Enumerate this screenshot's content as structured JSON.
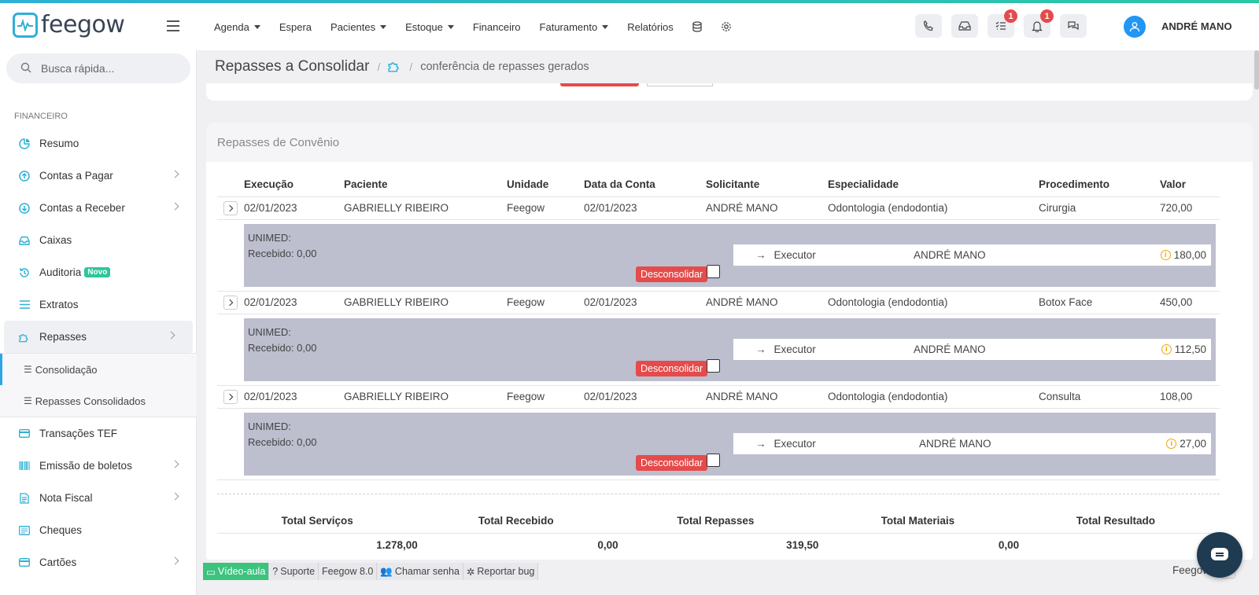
{
  "brand": {
    "name": "feegow",
    "color": "#2fb0d6"
  },
  "nav": {
    "items": [
      {
        "label": "Agenda",
        "dropdown": true
      },
      {
        "label": "Espera",
        "dropdown": false
      },
      {
        "label": "Pacientes",
        "dropdown": true
      },
      {
        "label": "Estoque",
        "dropdown": true
      },
      {
        "label": "Financeiro",
        "dropdown": false
      },
      {
        "label": "Faturamento",
        "dropdown": true
      },
      {
        "label": "Relatórios",
        "dropdown": false
      }
    ],
    "icons": [
      "database-icon",
      "gear-icon"
    ]
  },
  "header": {
    "icons": [
      {
        "name": "phone-icon",
        "badge": null
      },
      {
        "name": "inbox-icon",
        "badge": null
      },
      {
        "name": "tasks-icon",
        "badge": "1"
      },
      {
        "name": "bell-icon",
        "badge": "1"
      },
      {
        "name": "chat-icon",
        "badge": null
      }
    ],
    "user": "ANDRÉ MANO"
  },
  "sidebar": {
    "search_placeholder": "Busca rápida...",
    "section": "FINANCEIRO",
    "items": [
      {
        "label": "Resumo",
        "icon": "pie-chart-icon"
      },
      {
        "label": "Contas a Pagar",
        "icon": "arrow-up-circle-icon",
        "chevron": true
      },
      {
        "label": "Contas a Receber",
        "icon": "arrow-down-circle-icon",
        "chevron": true
      },
      {
        "label": "Caixas",
        "icon": "inbox-icon"
      },
      {
        "label": "Auditoria",
        "icon": "history-icon",
        "badge": "Novo"
      },
      {
        "label": "Extratos",
        "icon": "list-icon"
      },
      {
        "label": "Repasses",
        "icon": "puzzle-icon",
        "chevron": true,
        "active": true
      }
    ],
    "sub_items": [
      {
        "label": "Consolidação",
        "active": true
      },
      {
        "label": "Repasses Consolidados"
      }
    ],
    "items_after": [
      {
        "label": "Transações TEF",
        "icon": "card-icon"
      },
      {
        "label": "Emissão de boletos",
        "icon": "barcode-icon",
        "chevron": true
      },
      {
        "label": "Nota Fiscal",
        "icon": "document-icon",
        "chevron": true
      },
      {
        "label": "Cheques",
        "icon": "check-icon"
      },
      {
        "label": "Cartões",
        "icon": "card-icon",
        "chevron": true
      }
    ]
  },
  "breadcrumb": {
    "title": "Repasses a Consolidar",
    "current": "conferência de repasses gerados"
  },
  "panel": {
    "title": "Repasses de Convênio",
    "columns": [
      "Execução",
      "Paciente",
      "Unidade",
      "Data da Conta",
      "Solicitante",
      "Especialidade",
      "Procedimento",
      "Valor"
    ],
    "rows": [
      {
        "execucao": "02/01/2023",
        "paciente": "GABRIELLY RIBEIRO",
        "unidade": "Feegow",
        "data_conta": "02/01/2023",
        "solicitante": "ANDRÉ MANO",
        "especialidade": "Odontologia (endodontia)",
        "procedimento": "Cirurgia",
        "valor": "720,00",
        "convenio": "UNIMED:",
        "recebido": "Recebido: 0,00",
        "action": "Desconsolidar",
        "exec_role": "Executor",
        "exec_name": "ANDRÉ MANO",
        "exec_value": "180,00"
      },
      {
        "execucao": "02/01/2023",
        "paciente": "GABRIELLY RIBEIRO",
        "unidade": "Feegow",
        "data_conta": "02/01/2023",
        "solicitante": "ANDRÉ MANO",
        "especialidade": "Odontologia (endodontia)",
        "procedimento": "Botox Face",
        "valor": "450,00",
        "convenio": "UNIMED:",
        "recebido": "Recebido: 0,00",
        "action": "Desconsolidar",
        "exec_role": "Executor",
        "exec_name": "ANDRÉ MANO",
        "exec_value": "112,50"
      },
      {
        "execucao": "02/01/2023",
        "paciente": "GABRIELLY RIBEIRO",
        "unidade": "Feegow",
        "data_conta": "02/01/2023",
        "solicitante": "ANDRÉ MANO",
        "especialidade": "Odontologia (endodontia)",
        "procedimento": "Consulta",
        "valor": "108,00",
        "convenio": "UNIMED:",
        "recebido": "Recebido: 0,00",
        "action": "Desconsolidar",
        "exec_role": "Executor",
        "exec_name": "ANDRÉ MANO",
        "exec_value": "27,00"
      }
    ],
    "totals": {
      "headers": [
        "Total Serviços",
        "Total Recebido",
        "Total Repasses",
        "Total Materiais",
        "Total Resultado"
      ],
      "values": [
        "1.278,00",
        "0,00",
        "319,50",
        "0,00",
        ""
      ]
    }
  },
  "footer": {
    "items": [
      "Vídeo-aula",
      "Suporte",
      "Feegow 8.0",
      "Chamar senha",
      "Reportar bug"
    ],
    "brand": "Feegow"
  },
  "colors": {
    "accent": "#2fb0d6",
    "danger": "#e54b4b",
    "detail_bg": "#bdbfcf",
    "success": "#3cc37e"
  }
}
